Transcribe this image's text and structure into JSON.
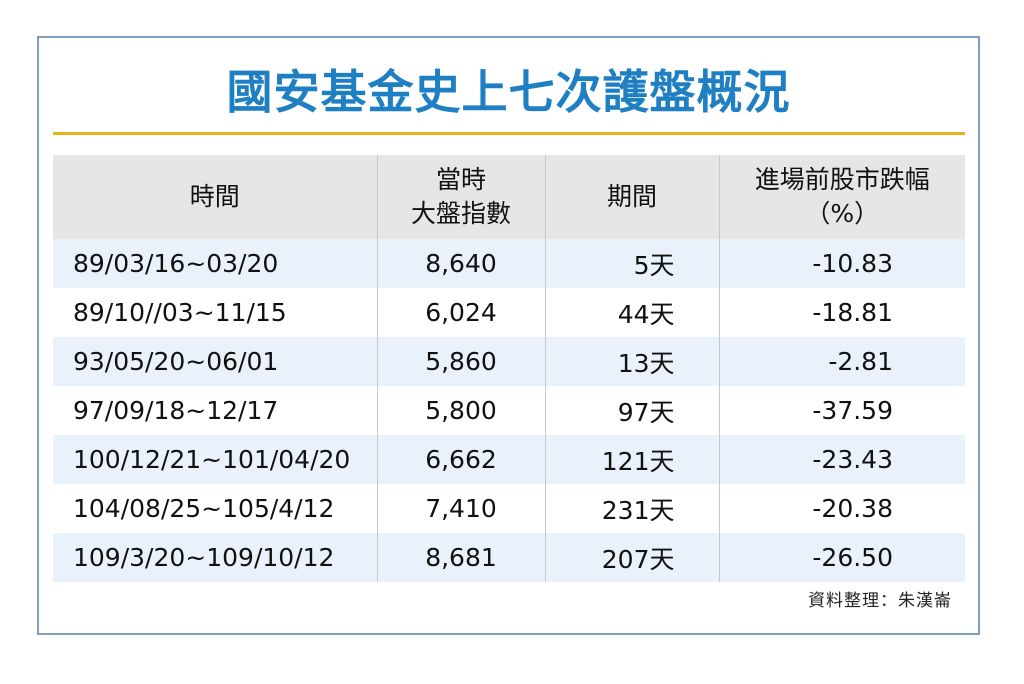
{
  "title": "國安基金史上七次護盤概況",
  "table": {
    "headers": {
      "period": "時間",
      "index_line1": "當時",
      "index_line2": "大盤指數",
      "duration": "期間",
      "drop_line1": "進場前股市跌幅",
      "drop_line2": "（%）"
    },
    "rows": [
      {
        "period": "89/03/16~03/20",
        "index": "8,640",
        "duration": "5天",
        "drop": "-10.83"
      },
      {
        "period": "89/10//03~11/15",
        "index": "6,024",
        "duration": "44天",
        "drop": "-18.81"
      },
      {
        "period": "93/05/20~06/01",
        "index": "5,860",
        "duration": "13天",
        "drop": "-2.81"
      },
      {
        "period": "97/09/18~12/17",
        "index": "5,800",
        "duration": "97天",
        "drop": "-37.59"
      },
      {
        "period": "100/12/21~101/04/20",
        "index": "6,662",
        "duration": "121天",
        "drop": "-23.43"
      },
      {
        "period": "104/08/25~105/4/12",
        "index": "7,410",
        "duration": "231天",
        "drop": "-20.38"
      },
      {
        "period": "109/3/20~109/10/12",
        "index": "8,681",
        "duration": "207天",
        "drop": "-26.50"
      }
    ]
  },
  "source": "資料整理：朱漢崙",
  "colors": {
    "title": "#1f7fc3",
    "rule": "#e5b21a",
    "frame": "#7f9ec2",
    "header_bg": "#e6e6e6",
    "stripe_bg": "#e9f2fb"
  }
}
